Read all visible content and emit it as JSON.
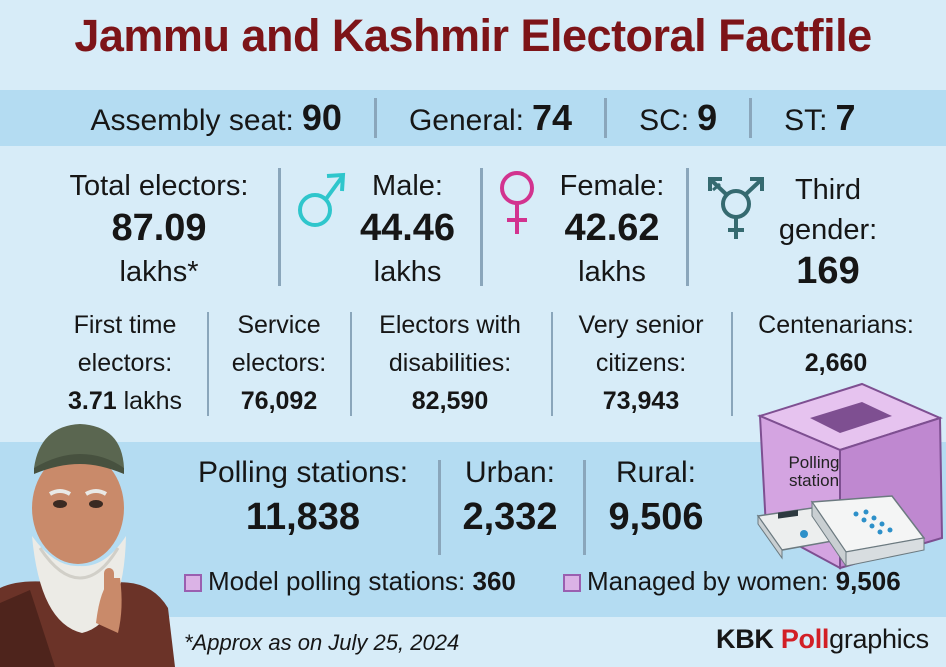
{
  "title": "Jammu and Kashmir Electoral Factfile",
  "seats": [
    {
      "label": "Assembly seat:",
      "value": "90"
    },
    {
      "label": "General:",
      "value": "74"
    },
    {
      "label": "SC:",
      "value": "9"
    },
    {
      "label": "ST:",
      "value": "7"
    }
  ],
  "total": {
    "label": "Total electors:",
    "value": "87.09",
    "unit": "lakhs*"
  },
  "male": {
    "label": "Male:",
    "value": "44.46",
    "unit": "lakhs"
  },
  "female": {
    "label": "Female:",
    "value": "42.62",
    "unit": "lakhs"
  },
  "third": {
    "label_line1": "Third",
    "label_line2": "gender:",
    "value": "169"
  },
  "stats": [
    {
      "line1": "First time",
      "line2": "electors:",
      "value": "3.71",
      "unit": " lakhs"
    },
    {
      "line1": "Service",
      "line2": "electors:",
      "value": "76,092"
    },
    {
      "line1": "Electors with",
      "line2": "disabilities:",
      "value": "82,590"
    },
    {
      "line1": "Very senior",
      "line2": "citizens:",
      "value": "73,943"
    },
    {
      "line1": "Centenarians:",
      "value": "2,660"
    }
  ],
  "polling": {
    "label": "Polling stations:",
    "value": "11,838"
  },
  "urban": {
    "label": "Urban:",
    "value": "2,332"
  },
  "rural": {
    "label": "Rural:",
    "value": "9,506"
  },
  "box_label_line1": "Polling",
  "box_label_line2": "station",
  "model": {
    "label": "Model polling stations:",
    "value": "360"
  },
  "women": {
    "label": "Managed by women:",
    "value": "9,506"
  },
  "footnote": "*Approx as on July 25, 2024",
  "brand": {
    "part1": "KBK ",
    "part2": "Poll",
    "part3": "graphics"
  },
  "colors": {
    "title": "#7d1418",
    "male_icon": "#2fc6cc",
    "female_icon": "#d2338f",
    "third_icon": "#356a70",
    "ballot_box": "#cc97da",
    "brand_red": "#d21f26"
  },
  "icons": [
    "male-symbol-icon",
    "female-symbol-icon",
    "transgender-symbol-icon",
    "ballot-box-icon",
    "voting-machine-icon",
    "voter-portrait"
  ]
}
